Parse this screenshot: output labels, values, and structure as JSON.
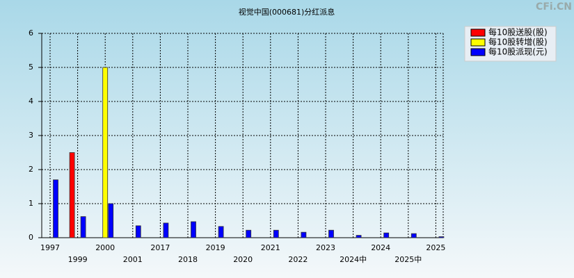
{
  "chart_data": {
    "type": "bar",
    "title": "视觉中国(000681)分红派息",
    "watermark": "CFi.CN",
    "categories": [
      "1997",
      "1999",
      "2000",
      "2001",
      "2017",
      "2018",
      "2019",
      "2020",
      "2021",
      "2022",
      "2023",
      "2024中",
      "2024",
      "2025中",
      "2025"
    ],
    "series": [
      {
        "name": "每10股送股(股)",
        "color": "#ff0000",
        "values": [
          null,
          2.5,
          null,
          null,
          null,
          null,
          null,
          null,
          null,
          null,
          null,
          null,
          null,
          null,
          null
        ]
      },
      {
        "name": "每10股转增(股)",
        "color": "#ffff00",
        "values": [
          null,
          null,
          5,
          null,
          null,
          null,
          null,
          null,
          null,
          null,
          null,
          null,
          null,
          null,
          null
        ]
      },
      {
        "name": "每10股派现(元)",
        "color": "#0000ff",
        "values": [
          1.7,
          0.62,
          1.0,
          0.35,
          0.43,
          0.47,
          0.33,
          0.22,
          0.22,
          0.16,
          0.22,
          0.07,
          0.14,
          0.12,
          0.03
        ]
      }
    ],
    "ylim": [
      0,
      6
    ],
    "yticks": [
      0,
      1,
      2,
      3,
      4,
      5,
      6
    ],
    "grid": true,
    "legend": "top-right"
  }
}
